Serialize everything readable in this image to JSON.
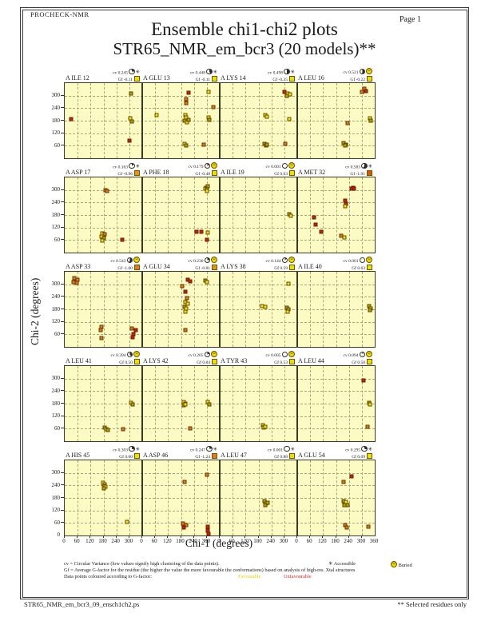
{
  "header": {
    "app": "PROCHECK-NMR",
    "title": "Ensemble chi1-chi2 plots",
    "subtitle": "STR65_NMR_em_bcr3 (20 models)**",
    "page": "Page  1"
  },
  "icons": {
    "accessible": "✳",
    "buried": "☺"
  },
  "stats_labels": {
    "cv": "cv",
    "gf": "Gf"
  },
  "legend": {
    "cv_line": "cv = Circular Variance (low values signify high clustering of the data points).",
    "accessible_label": "Accessible",
    "buried_label": "Buried",
    "gf_line": "Gf = Average G-factor for the residue (the higher the value the more favourable the conformations)  based on analysis of high-res. Xtal structures",
    "colour_line": "Data points coloured according to G-factor:",
    "favourable_label": "Favourable",
    "unfavourable_label": "Unfavourable"
  },
  "footer": {
    "filename": "STR65_NMR_em_bcr3_09_ensch1ch2.ps",
    "note": "** Selected residues only"
  },
  "chart_data": {
    "type": "scatter",
    "grid": {
      "rows": 5,
      "cols": 4
    },
    "x_range": [
      0,
      360
    ],
    "y_range": [
      0,
      360
    ],
    "x_ticks": [
      0,
      60,
      120,
      180,
      240,
      300,
      360
    ],
    "y_ticks": [
      0,
      60,
      120,
      180,
      240,
      300
    ],
    "xlabel": "Chi-1 (degrees)",
    "ylabel": "Chi-2 (degrees)",
    "grid_on": true,
    "point_colors": {
      "y": "#f0e010",
      "d": "#b4a400",
      "o": "#e07818",
      "r": "#cf1d10"
    },
    "plots": [
      {
        "residue": "A ILE 12",
        "cv": "0.245",
        "gf": "-0.11",
        "burial": "accessible",
        "gf_color": "#f0dc00",
        "points": [
          [
            31,
            186,
            "r"
          ],
          [
            308,
            310,
            "d"
          ],
          [
            306,
            190,
            "y"
          ],
          [
            311,
            178,
            "d"
          ],
          [
            300,
            84,
            "r"
          ]
        ]
      },
      {
        "residue": "A GLU 13",
        "cv": "0.448",
        "gf": "-0.11",
        "burial": "accessible",
        "gf_color": "#f0dc00",
        "points": [
          [
            65,
            205,
            "y"
          ],
          [
            215,
            314,
            "r"
          ],
          [
            203,
            282,
            "o"
          ],
          [
            205,
            263,
            "o"
          ],
          [
            199,
            208,
            "y"
          ],
          [
            205,
            196,
            "y"
          ],
          [
            195,
            180,
            "d"
          ],
          [
            207,
            172,
            "y"
          ],
          [
            215,
            183,
            "d"
          ],
          [
            309,
            316,
            "y"
          ],
          [
            330,
            244,
            "o"
          ],
          [
            307,
            195,
            "y"
          ],
          [
            311,
            182,
            "d"
          ],
          [
            195,
            68,
            "y"
          ],
          [
            205,
            62,
            "d"
          ],
          [
            284,
            64,
            "o"
          ]
        ]
      },
      {
        "residue": "A LYS 14",
        "cv": "0.498",
        "gf": "-0.35",
        "burial": "accessible",
        "gf_color": "#f0dc00",
        "points": [
          [
            212,
            208,
            "y"
          ],
          [
            218,
            198,
            "y"
          ],
          [
            301,
            316,
            "r"
          ],
          [
            317,
            312,
            "y"
          ],
          [
            327,
            306,
            "y"
          ],
          [
            313,
            300,
            "d"
          ],
          [
            322,
            186,
            "y"
          ],
          [
            206,
            68,
            "d"
          ],
          [
            214,
            60,
            "y"
          ],
          [
            220,
            64,
            "d"
          ],
          [
            304,
            68,
            "o"
          ]
        ]
      },
      {
        "residue": "A LEU 16",
        "cv": "0.521",
        "gf": "-0.22",
        "burial": "buried",
        "gf_color": "#f0dc00",
        "points": [
          [
            312,
            333,
            "o"
          ],
          [
            321,
            320,
            "r"
          ],
          [
            302,
            317,
            "o"
          ],
          [
            234,
            167,
            "o"
          ],
          [
            217,
            72,
            "d"
          ],
          [
            226,
            65,
            "y"
          ],
          [
            222,
            60,
            "d"
          ],
          [
            338,
            190,
            "y"
          ],
          [
            343,
            180,
            "d"
          ]
        ]
      },
      {
        "residue": "A ASP 17",
        "cv": "0.163",
        "gf": "-0.96",
        "burial": "accessible",
        "gf_color": "#e89018",
        "points": [
          [
            190,
            300,
            "o"
          ],
          [
            196,
            293,
            "o"
          ],
          [
            175,
            93,
            "y"
          ],
          [
            187,
            88,
            "o"
          ],
          [
            169,
            75,
            "y"
          ],
          [
            181,
            68,
            "d"
          ],
          [
            175,
            59,
            "y"
          ],
          [
            266,
            62,
            "r"
          ]
        ]
      },
      {
        "residue": "A PHE 18",
        "cv": "0.179",
        "gf": "-0.48",
        "burial": "buried",
        "gf_color": "#f0dc00",
        "points": [
          [
            298,
            312,
            "y"
          ],
          [
            305,
            316,
            "d"
          ],
          [
            295,
            305,
            "y"
          ],
          [
            302,
            302,
            "d"
          ],
          [
            300,
            295,
            "y"
          ],
          [
            253,
            98,
            "r"
          ],
          [
            275,
            100,
            "r"
          ],
          [
            303,
            95,
            "y"
          ],
          [
            301,
            62,
            "r"
          ]
        ]
      },
      {
        "residue": "A ILE 19",
        "cv": "0.001",
        "gf": "0.63",
        "burial": "buried",
        "gf_color": "#f0dc00",
        "points": [
          [
            323,
            183,
            "d"
          ],
          [
            329,
            177,
            "y"
          ]
        ]
      },
      {
        "residue": "A MET 32",
        "cv": "0.583",
        "gf": "-1.91",
        "burial": "accessible",
        "gf_color": "#dd5500",
        "points": [
          [
            258,
            312,
            "r"
          ],
          [
            252,
            305,
            "r"
          ],
          [
            263,
            306,
            "r"
          ],
          [
            221,
            250,
            "r"
          ],
          [
            227,
            232,
            "r"
          ],
          [
            224,
            222,
            "y"
          ],
          [
            78,
            167,
            "r"
          ],
          [
            84,
            135,
            "r"
          ],
          [
            112,
            100,
            "r"
          ],
          [
            205,
            80,
            "o"
          ],
          [
            218,
            72,
            "y"
          ]
        ]
      },
      {
        "residue": "A ASP 33",
        "cv": "0.543",
        "gf": "-1.60",
        "burial": "buried",
        "gf_color": "#e87818",
        "points": [
          [
            44,
            330,
            "o"
          ],
          [
            59,
            322,
            "o"
          ],
          [
            41,
            310,
            "o"
          ],
          [
            54,
            306,
            "o"
          ],
          [
            171,
            97,
            "o"
          ],
          [
            166,
            79,
            "o"
          ],
          [
            169,
            41,
            "o"
          ],
          [
            312,
            88,
            "o"
          ],
          [
            329,
            79,
            "r"
          ],
          [
            321,
            60,
            "r"
          ],
          [
            316,
            45,
            "r"
          ]
        ]
      },
      {
        "residue": "A GLU 34",
        "cv": "0.230",
        "gf": "-0.81",
        "burial": "buried",
        "gf_color": "#e89018",
        "points": [
          [
            211,
            323,
            "r"
          ],
          [
            222,
            313,
            "r"
          ],
          [
            186,
            290,
            "o"
          ],
          [
            202,
            265,
            "r"
          ],
          [
            207,
            234,
            "o"
          ],
          [
            202,
            214,
            "y"
          ],
          [
            211,
            205,
            "y"
          ],
          [
            195,
            192,
            "d"
          ],
          [
            205,
            183,
            "y"
          ],
          [
            199,
            170,
            "y"
          ],
          [
            202,
            81,
            "o"
          ],
          [
            292,
            319,
            "d"
          ],
          [
            302,
            310,
            "y"
          ]
        ]
      },
      {
        "residue": "A LYS 38",
        "cv": "0.144",
        "gf": "0.59",
        "burial": "buried",
        "gf_color": "#f0dc00",
        "points": [
          [
            197,
            197,
            "y"
          ],
          [
            210,
            190,
            "y"
          ],
          [
            319,
            301,
            "y"
          ],
          [
            310,
            188,
            "d"
          ],
          [
            319,
            180,
            "d"
          ],
          [
            314,
            170,
            "y"
          ]
        ]
      },
      {
        "residue": "A ILE 40",
        "cv": "0.001",
        "gf": "0.63",
        "burial": "buried",
        "gf_color": "#f0dc00",
        "points": [
          [
            334,
            195,
            "d"
          ],
          [
            343,
            185,
            "y"
          ],
          [
            338,
            176,
            "d"
          ]
        ]
      },
      {
        "residue": "A LEU 41",
        "cv": "0.394",
        "gf": "0.50",
        "burial": "buried",
        "gf_color": "#f0dc00",
        "points": [
          [
            309,
            183,
            "y"
          ],
          [
            315,
            176,
            "d"
          ],
          [
            186,
            66,
            "d"
          ],
          [
            194,
            58,
            "y"
          ],
          [
            199,
            52,
            "d"
          ],
          [
            271,
            57,
            "o"
          ]
        ]
      },
      {
        "residue": "A LYS 42",
        "cv": "0.205",
        "gf": "0.84",
        "burial": "buried",
        "gf_color": "#f0dc00",
        "points": [
          [
            192,
            186,
            "y"
          ],
          [
            199,
            180,
            "y"
          ],
          [
            194,
            172,
            "d"
          ],
          [
            201,
            176,
            "y"
          ],
          [
            305,
            186,
            "y"
          ],
          [
            311,
            178,
            "d"
          ],
          [
            221,
            62,
            "o"
          ]
        ]
      },
      {
        "residue": "A TYR 43",
        "cv": "0.005",
        "gf": "0.53",
        "burial": "buried",
        "gf_color": "#f0dc00",
        "points": [
          [
            200,
            75,
            "y"
          ],
          [
            207,
            70,
            "d"
          ],
          [
            203,
            64,
            "y"
          ],
          [
            210,
            68,
            "y"
          ]
        ]
      },
      {
        "residue": "A LEU 44",
        "cv": "0.094",
        "gf": "0.50",
        "burial": "buried",
        "gf_color": "#f0dc00",
        "points": [
          [
            309,
            290,
            "r"
          ],
          [
            334,
            183,
            "d"
          ],
          [
            339,
            177,
            "y"
          ],
          [
            325,
            68,
            "o"
          ]
        ]
      },
      {
        "residue": "A HIS 45",
        "cv": "0.303",
        "gf": "0.00",
        "burial": "accessible",
        "gf_color": "#f0dc00",
        "points": [
          [
            177,
            252,
            "y"
          ],
          [
            186,
            246,
            "y"
          ],
          [
            180,
            238,
            "d"
          ],
          [
            189,
            233,
            "y"
          ],
          [
            183,
            226,
            "d"
          ],
          [
            291,
            66,
            "y"
          ]
        ]
      },
      {
        "residue": "A ASP 46",
        "cv": "0.247",
        "gf": "-1.24",
        "burial": "accessible",
        "gf_color": "#e87818",
        "points": [
          [
            196,
            255,
            "o"
          ],
          [
            299,
            291,
            "o"
          ],
          [
            190,
            57,
            "o"
          ],
          [
            203,
            50,
            "o"
          ],
          [
            193,
            38,
            "r"
          ],
          [
            303,
            42,
            "r"
          ],
          [
            305,
            24,
            "r"
          ],
          [
            308,
            6,
            "r"
          ]
        ]
      },
      {
        "residue": "A LEU 47",
        "cv": "0.001",
        "gf": "0.88",
        "burial": "accessible",
        "gf_color": "#f0dc00",
        "points": [
          [
            208,
            164,
            "d"
          ],
          [
            216,
            154,
            "y"
          ],
          [
            211,
            145,
            "d"
          ],
          [
            223,
            158,
            "d"
          ]
        ]
      },
      {
        "residue": "A GLU 54",
        "cv": "0.295",
        "gf": "0.09",
        "burial": "accessible",
        "gf_color": "#f0dc00",
        "points": [
          [
            252,
            284,
            "r"
          ],
          [
            217,
            255,
            "o"
          ],
          [
            215,
            166,
            "d"
          ],
          [
            227,
            159,
            "y"
          ],
          [
            219,
            147,
            "d"
          ],
          [
            234,
            144,
            "d"
          ],
          [
            221,
            48,
            "o"
          ],
          [
            230,
            38,
            "o"
          ],
          [
            330,
            41,
            "o"
          ]
        ]
      }
    ]
  }
}
